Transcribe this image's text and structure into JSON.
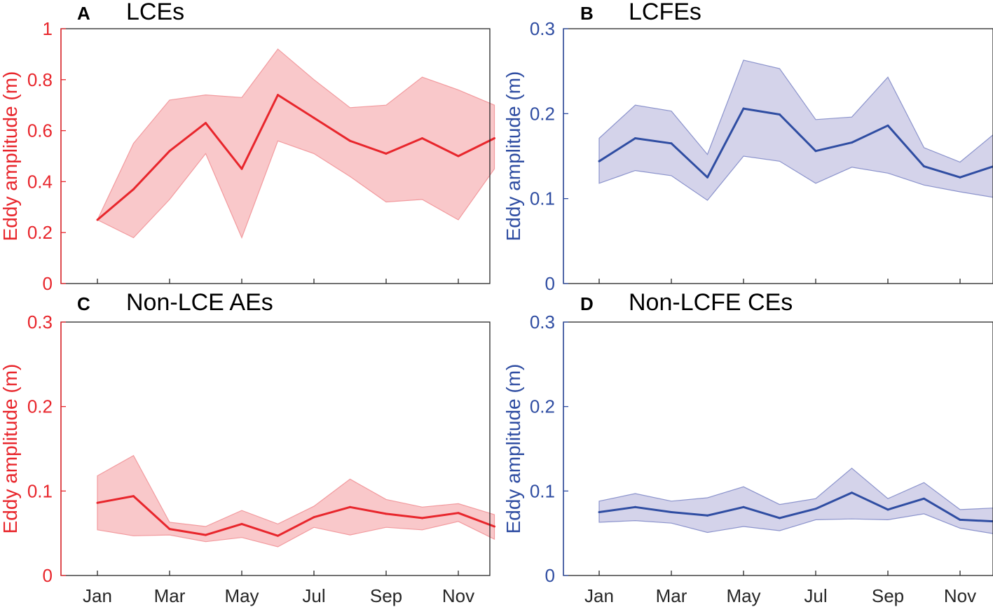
{
  "colors": {
    "red_line": "#e8262c",
    "red_band": "#f9c8ca",
    "red_band_edge": "#f29a9e",
    "red_axis": "#e8262c",
    "blue_line": "#2f4da2",
    "blue_band": "#d4d3ea",
    "blue_band_edge": "#8b93cc",
    "blue_axis": "#2f4da2",
    "frame": "#262626"
  },
  "x_months": [
    1,
    2,
    3,
    4,
    5,
    6,
    7,
    8,
    9,
    10,
    11,
    12
  ],
  "x_tick_labels": [
    "Jan",
    "Mar",
    "May",
    "Jul",
    "Sep",
    "Nov"
  ],
  "chart_data": [
    {
      "id": "A",
      "type": "line",
      "letter": "A",
      "title": "LCEs",
      "ylabel": "Eddy amplitude (m)",
      "color": "red",
      "ylim": [
        0,
        1
      ],
      "yticks": [
        0,
        0.2,
        0.4,
        0.6,
        0.8,
        1
      ],
      "ytick_labels": [
        "0",
        "0.2",
        "0.4",
        "0.6",
        "0.8",
        "1"
      ],
      "x": [
        1,
        2,
        3,
        4,
        5,
        6,
        7,
        8,
        9,
        10,
        11,
        12
      ],
      "mean": [
        0.25,
        0.37,
        0.52,
        0.63,
        0.45,
        0.74,
        0.65,
        0.56,
        0.51,
        0.57,
        0.5,
        0.57
      ],
      "upper": [
        0.25,
        0.55,
        0.72,
        0.74,
        0.73,
        0.92,
        0.8,
        0.69,
        0.7,
        0.81,
        0.76,
        0.7
      ],
      "lower": [
        0.25,
        0.18,
        0.33,
        0.51,
        0.18,
        0.56,
        0.51,
        0.42,
        0.32,
        0.33,
        0.25,
        0.45
      ]
    },
    {
      "id": "B",
      "type": "line",
      "letter": "B",
      "title": "LCFEs",
      "ylabel": "Eddy amplitude (m)",
      "color": "blue",
      "ylim": [
        0,
        0.3
      ],
      "yticks": [
        0,
        0.1,
        0.2,
        0.3
      ],
      "ytick_labels": [
        "0",
        "0.1",
        "0.2",
        "0.3"
      ],
      "x": [
        1,
        2,
        3,
        4,
        5,
        6,
        7,
        8,
        9,
        10,
        11,
        12
      ],
      "mean": [
        0.144,
        0.171,
        0.165,
        0.125,
        0.206,
        0.199,
        0.156,
        0.166,
        0.186,
        0.138,
        0.125,
        0.139
      ],
      "upper": [
        0.171,
        0.21,
        0.203,
        0.152,
        0.263,
        0.253,
        0.193,
        0.196,
        0.243,
        0.16,
        0.143,
        0.178
      ],
      "lower": [
        0.118,
        0.133,
        0.127,
        0.098,
        0.15,
        0.144,
        0.118,
        0.137,
        0.13,
        0.116,
        0.108,
        0.101
      ]
    },
    {
      "id": "C",
      "type": "line",
      "letter": "C",
      "title": "Non-LCE AEs",
      "ylabel": "Eddy amplitude (m)",
      "color": "red",
      "ylim": [
        0,
        0.3
      ],
      "yticks": [
        0,
        0.1,
        0.2,
        0.3
      ],
      "ytick_labels": [
        "0",
        "0.1",
        "0.2",
        "0.3"
      ],
      "x": [
        1,
        2,
        3,
        4,
        5,
        6,
        7,
        8,
        9,
        10,
        11,
        12
      ],
      "mean": [
        0.086,
        0.094,
        0.055,
        0.048,
        0.061,
        0.047,
        0.069,
        0.081,
        0.073,
        0.068,
        0.074,
        0.058
      ],
      "upper": [
        0.118,
        0.142,
        0.063,
        0.058,
        0.077,
        0.061,
        0.082,
        0.114,
        0.09,
        0.081,
        0.085,
        0.072
      ],
      "lower": [
        0.054,
        0.047,
        0.048,
        0.04,
        0.045,
        0.034,
        0.057,
        0.048,
        0.057,
        0.054,
        0.064,
        0.043
      ]
    },
    {
      "id": "D",
      "type": "line",
      "letter": "D",
      "title": "Non-LCFE CEs",
      "ylabel": "Eddy amplitude (m)",
      "color": "blue",
      "ylim": [
        0,
        0.3
      ],
      "yticks": [
        0,
        0.1,
        0.2,
        0.3
      ],
      "ytick_labels": [
        "0",
        "0.1",
        "0.2",
        "0.3"
      ],
      "x": [
        1,
        2,
        3,
        4,
        5,
        6,
        7,
        8,
        9,
        10,
        11,
        12
      ],
      "mean": [
        0.075,
        0.081,
        0.075,
        0.071,
        0.081,
        0.068,
        0.079,
        0.098,
        0.078,
        0.091,
        0.066,
        0.064
      ],
      "upper": [
        0.088,
        0.097,
        0.088,
        0.092,
        0.105,
        0.084,
        0.091,
        0.127,
        0.091,
        0.11,
        0.078,
        0.08
      ],
      "lower": [
        0.063,
        0.065,
        0.062,
        0.051,
        0.058,
        0.053,
        0.066,
        0.067,
        0.066,
        0.073,
        0.056,
        0.049
      ]
    }
  ]
}
